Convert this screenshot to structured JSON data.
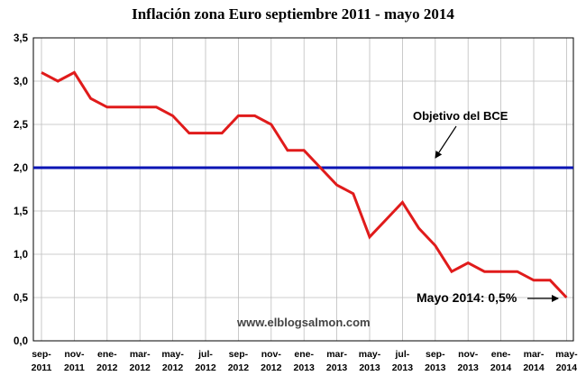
{
  "chart_data": {
    "type": "line",
    "title": "Inflación zona Euro  septiembre 2011 - mayo 2014",
    "xlabel": "",
    "ylabel": "",
    "ylim": [
      0,
      3.5
    ],
    "ytick_labels": [
      "0,0",
      "0,5",
      "1,0",
      "1,5",
      "2,0",
      "2,5",
      "3,0",
      "3,5"
    ],
    "grid": true,
    "x_tick_labels": [
      [
        "sep-",
        "2011"
      ],
      [
        "nov-",
        "2011"
      ],
      [
        "ene-",
        "2012"
      ],
      [
        "mar-",
        "2012"
      ],
      [
        "may-",
        "2012"
      ],
      [
        "jul-",
        "2012"
      ],
      [
        "sep-",
        "2012"
      ],
      [
        "nov-",
        "2012"
      ],
      [
        "ene-",
        "2013"
      ],
      [
        "mar-",
        "2013"
      ],
      [
        "may-",
        "2013"
      ],
      [
        "jul-",
        "2013"
      ],
      [
        "sep-",
        "2013"
      ],
      [
        "nov-",
        "2013"
      ],
      [
        "ene-",
        "2014"
      ],
      [
        "mar-",
        "2014"
      ],
      [
        "may-",
        "2014"
      ]
    ],
    "x": [
      "2011-09",
      "2011-10",
      "2011-11",
      "2011-12",
      "2012-01",
      "2012-02",
      "2012-03",
      "2012-04",
      "2012-05",
      "2012-06",
      "2012-07",
      "2012-08",
      "2012-09",
      "2012-10",
      "2012-11",
      "2012-12",
      "2013-01",
      "2013-02",
      "2013-03",
      "2013-04",
      "2013-05",
      "2013-06",
      "2013-07",
      "2013-08",
      "2013-09",
      "2013-10",
      "2013-11",
      "2013-12",
      "2014-01",
      "2014-02",
      "2014-03",
      "2014-04",
      "2014-05"
    ],
    "series": [
      {
        "name": "",
        "color": "#e01b1b",
        "values": [
          3.1,
          3.0,
          3.1,
          2.8,
          2.7,
          2.7,
          2.7,
          2.7,
          2.6,
          2.4,
          2.4,
          2.4,
          2.6,
          2.6,
          2.5,
          2.2,
          2.2,
          2.0,
          1.8,
          1.7,
          1.2,
          1.4,
          1.6,
          1.3,
          1.1,
          0.8,
          0.9,
          0.8,
          0.8,
          0.8,
          0.7,
          0.7,
          0.5
        ]
      }
    ],
    "reference_line": {
      "label": "Objetivo del BCE",
      "value": 2.0,
      "color": "#0a14b4"
    },
    "annotations": [
      {
        "text": "Objetivo del BCE"
      },
      {
        "text": "Mayo 2014: 0,5%"
      }
    ],
    "watermark": "www.elblogsalmon.com"
  }
}
